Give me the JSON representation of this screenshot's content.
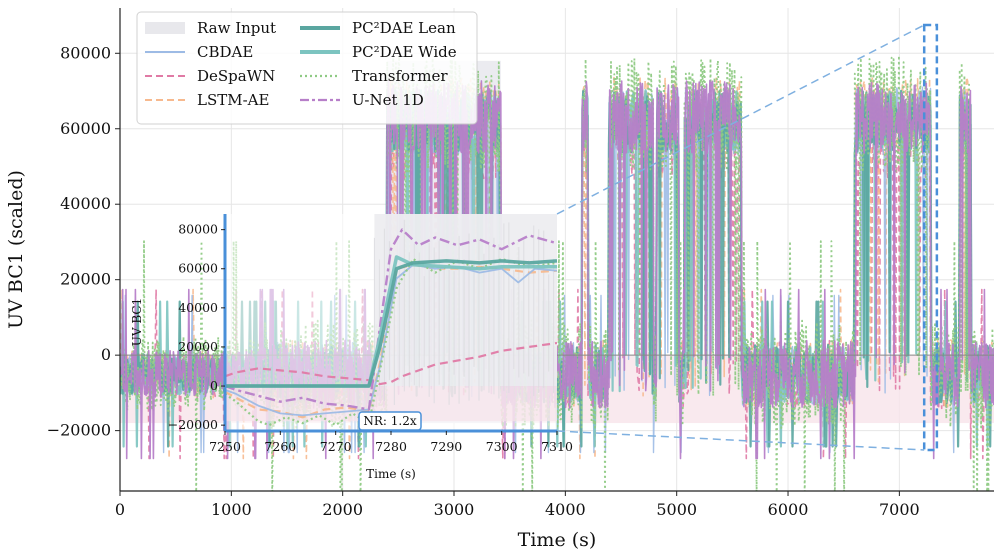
{
  "chart_data": {
    "type": "line",
    "title": "",
    "xlabel": "Time (s)",
    "ylabel": "UV BC1 (scaled)",
    "xlim": [
      0,
      7850
    ],
    "ylim": [
      -36000,
      92000
    ],
    "x_ticks": [
      0,
      1000,
      2000,
      3000,
      4000,
      5000,
      6000,
      7000
    ],
    "y_ticks": [
      -20000,
      0,
      20000,
      40000,
      60000,
      80000
    ],
    "x_tick_labels": [
      "0",
      "1000",
      "2000",
      "3000",
      "4000",
      "5000",
      "6000",
      "7000"
    ],
    "y_tick_labels": [
      "−20000",
      "0",
      "20000",
      "40000",
      "60000",
      "80000"
    ],
    "grid": true,
    "legend_position": "top-left",
    "legend": [
      {
        "label": "Raw Input",
        "color": "#d9d9d9",
        "style": "patch"
      },
      {
        "label": "CBDAE",
        "color": "#9dbbe5",
        "style": "solid"
      },
      {
        "label": "DeSpaWN",
        "color": "#e07aa5",
        "style": "dashed"
      },
      {
        "label": "LSTM-AE",
        "color": "#f7b98e",
        "style": "dashed"
      },
      {
        "label": "PC²DAE Lean",
        "color": "#5aa6a0",
        "style": "solid-thick"
      },
      {
        "label": "PC²DAE Wide",
        "color": "#7cc4c0",
        "style": "solid-thick"
      },
      {
        "label": "Transformer",
        "color": "#8fca84",
        "style": "dotted"
      },
      {
        "label": "U-Net 1D",
        "color": "#b77fc9",
        "style": "dashdot"
      }
    ],
    "signal_levels": {
      "low": -5000,
      "high": 62000,
      "band_lower": -18000
    },
    "high_regions": [
      [
        2400,
        3420
      ],
      [
        4150,
        4200
      ],
      [
        4390,
        4790
      ],
      [
        4820,
        5020
      ],
      [
        5070,
        5580
      ],
      [
        6600,
        7280
      ],
      [
        7540,
        7640
      ]
    ],
    "zoom_window": {
      "x": [
        7250,
        7310
      ]
    },
    "inset": {
      "xlabel": "Time (s)",
      "ylabel": "UV BC1",
      "xlim": [
        7250,
        7310
      ],
      "ylim": [
        -23000,
        88000
      ],
      "x_ticks": [
        7250,
        7260,
        7270,
        7280,
        7290,
        7300,
        7310
      ],
      "y_ticks": [
        -20000,
        0,
        20000,
        40000,
        60000,
        80000
      ],
      "x_tick_labels": [
        "7250",
        "7260",
        "7270",
        "7280",
        "7290",
        "7300",
        "7310"
      ],
      "y_tick_labels": [
        "−20000",
        "0",
        "20000",
        "40000",
        "60000",
        "80000"
      ],
      "annotation": "NR: 1.2x",
      "series": [
        {
          "name": "PC²DAE Lean",
          "x": [
            7250,
            7252,
            7256,
            7262,
            7268,
            7272,
            7276,
            7278,
            7281,
            7284,
            7290,
            7296,
            7300,
            7305,
            7310
          ],
          "y": [
            0,
            0,
            0,
            0,
            0,
            0,
            0,
            20000,
            60000,
            63000,
            64000,
            63000,
            64000,
            63000,
            64000
          ]
        },
        {
          "name": "PC²DAE Wide",
          "x": [
            7250,
            7252,
            7256,
            7262,
            7268,
            7272,
            7276,
            7278,
            7281,
            7284,
            7290,
            7296,
            7300,
            7305,
            7310
          ],
          "y": [
            0,
            0,
            0,
            0,
            0,
            0,
            0,
            25000,
            66000,
            62000,
            61000,
            60000,
            61000,
            61000,
            61000
          ]
        },
        {
          "name": "CBDAE",
          "x": [
            7250,
            7252,
            7256,
            7260,
            7264,
            7268,
            7272,
            7276,
            7278,
            7281,
            7284,
            7288,
            7292,
            7296,
            7300,
            7303,
            7306,
            7310
          ],
          "y": [
            -2000,
            -4000,
            -10000,
            -14000,
            -15000,
            -14000,
            -13000,
            -12000,
            10000,
            55000,
            62000,
            60000,
            61000,
            58000,
            60000,
            53000,
            60000,
            59000
          ]
        },
        {
          "name": "LSTM-AE",
          "x": [
            7250,
            7252,
            7256,
            7260,
            7264,
            7268,
            7272,
            7276,
            7278,
            7281,
            7284,
            7288,
            7292,
            7296,
            7300,
            7305,
            7310
          ],
          "y": [
            -3000,
            -6000,
            -12000,
            -13000,
            -16000,
            -12000,
            -11000,
            -13000,
            12000,
            60000,
            62000,
            60000,
            60000,
            61000,
            60000,
            58000,
            59000
          ]
        },
        {
          "name": "Transformer",
          "x": [
            7250,
            7252,
            7256,
            7258,
            7261,
            7264,
            7267,
            7270,
            7273,
            7276,
            7278,
            7281,
            7284,
            7288,
            7292,
            7296,
            7300,
            7305,
            7310
          ],
          "y": [
            -4000,
            -8000,
            -18000,
            -20000,
            -16000,
            -19000,
            -15000,
            -20000,
            -14000,
            -19000,
            8000,
            50000,
            65000,
            58000,
            64000,
            60000,
            65000,
            61000,
            63000
          ]
        },
        {
          "name": "U-Net 1D",
          "x": [
            7250,
            7252,
            7256,
            7260,
            7264,
            7268,
            7272,
            7276,
            7278,
            7280,
            7282,
            7285,
            7288,
            7292,
            7296,
            7300,
            7305,
            7310
          ],
          "y": [
            0,
            -2000,
            -5000,
            -8000,
            -6000,
            -9000,
            -10000,
            -12000,
            30000,
            70000,
            80000,
            72000,
            76000,
            72000,
            75000,
            70000,
            77000,
            73000
          ]
        },
        {
          "name": "DeSpaWN",
          "x": [
            7250,
            7252,
            7256,
            7260,
            7264,
            7268,
            7272,
            7276,
            7278,
            7280,
            7282,
            7285,
            7288,
            7292,
            7296,
            7300,
            7305,
            7310
          ],
          "y": [
            5000,
            7000,
            9000,
            8000,
            7000,
            5000,
            4000,
            3000,
            1000,
            2000,
            5000,
            8000,
            11000,
            13000,
            15000,
            18000,
            20000,
            22000
          ]
        }
      ]
    }
  }
}
